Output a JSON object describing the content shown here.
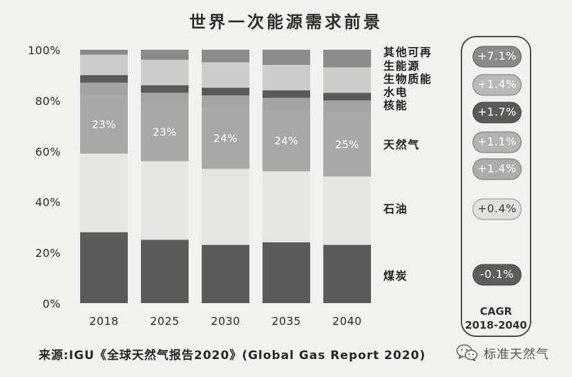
{
  "chart_data": {
    "type": "bar",
    "stacked": true,
    "title": "世界一次能源需求前景",
    "categories": [
      "2018",
      "2025",
      "2030",
      "2035",
      "2040"
    ],
    "ylim": [
      0,
      100
    ],
    "yticks": [
      0,
      20,
      40,
      60,
      80,
      100
    ],
    "ytick_labels": [
      "0%",
      "20%",
      "40%",
      "60%",
      "80%",
      "100%"
    ],
    "grid": false,
    "legend": "right",
    "series": [
      {
        "name": "煤炭",
        "values": [
          28,
          25,
          23,
          24,
          23
        ],
        "color": "#5b5b5b",
        "cagr": "-0.1%",
        "cagr_color": "#5d5d5d",
        "cagr_text_color": "#ffffff"
      },
      {
        "name": "石油",
        "values": [
          31,
          31,
          30,
          28,
          27
        ],
        "color": "#e5e5e2",
        "cagr": "+0.4%",
        "cagr_color": "#e0e0de",
        "cagr_text_color": "#3a3a3a"
      },
      {
        "name": "天然气",
        "values": [
          23,
          23,
          24,
          24,
          25
        ],
        "color": "#a8a8a8",
        "data_labels": [
          "23%",
          "23%",
          "24%",
          "24%",
          "25%"
        ],
        "cagr": "+1.4%",
        "cagr_color": "#acacac",
        "cagr_text_color": "#ffffff"
      },
      {
        "name": "核能",
        "values": [
          5,
          4,
          5,
          5,
          5
        ],
        "color": "#a4a4a4",
        "cagr": "+1.1%",
        "cagr_color": "#b3b3b3",
        "cagr_text_color": "#ffffff"
      },
      {
        "name": "水电",
        "values": [
          3,
          3,
          3,
          3,
          3
        ],
        "color": "#5a5a5a",
        "cagr": "+1.7%",
        "cagr_color": "#5b5b5b",
        "cagr_text_color": "#ffffff"
      },
      {
        "name": "生物质能",
        "values": [
          8,
          10,
          10,
          10,
          10
        ],
        "color": "#cdcdcb",
        "cagr": "+1.4%",
        "cagr_color": "#b9b9b9",
        "cagr_text_color": "#ffffff"
      },
      {
        "name": "其他可再生能源",
        "values": [
          2,
          4,
          5,
          6,
          7
        ],
        "color": "#8b8b8b",
        "cagr": "+7.1%",
        "cagr_color": "#8a8a8a",
        "cagr_text_color": "#ffffff"
      }
    ],
    "cagr_title": "CAGR",
    "cagr_period": "2018-2040"
  },
  "source": "来源:IGU《全球天然气报告2020》(Global Gas Report 2020)",
  "watermark": {
    "text": "标准天然气",
    "icon": "wechat-icon"
  }
}
